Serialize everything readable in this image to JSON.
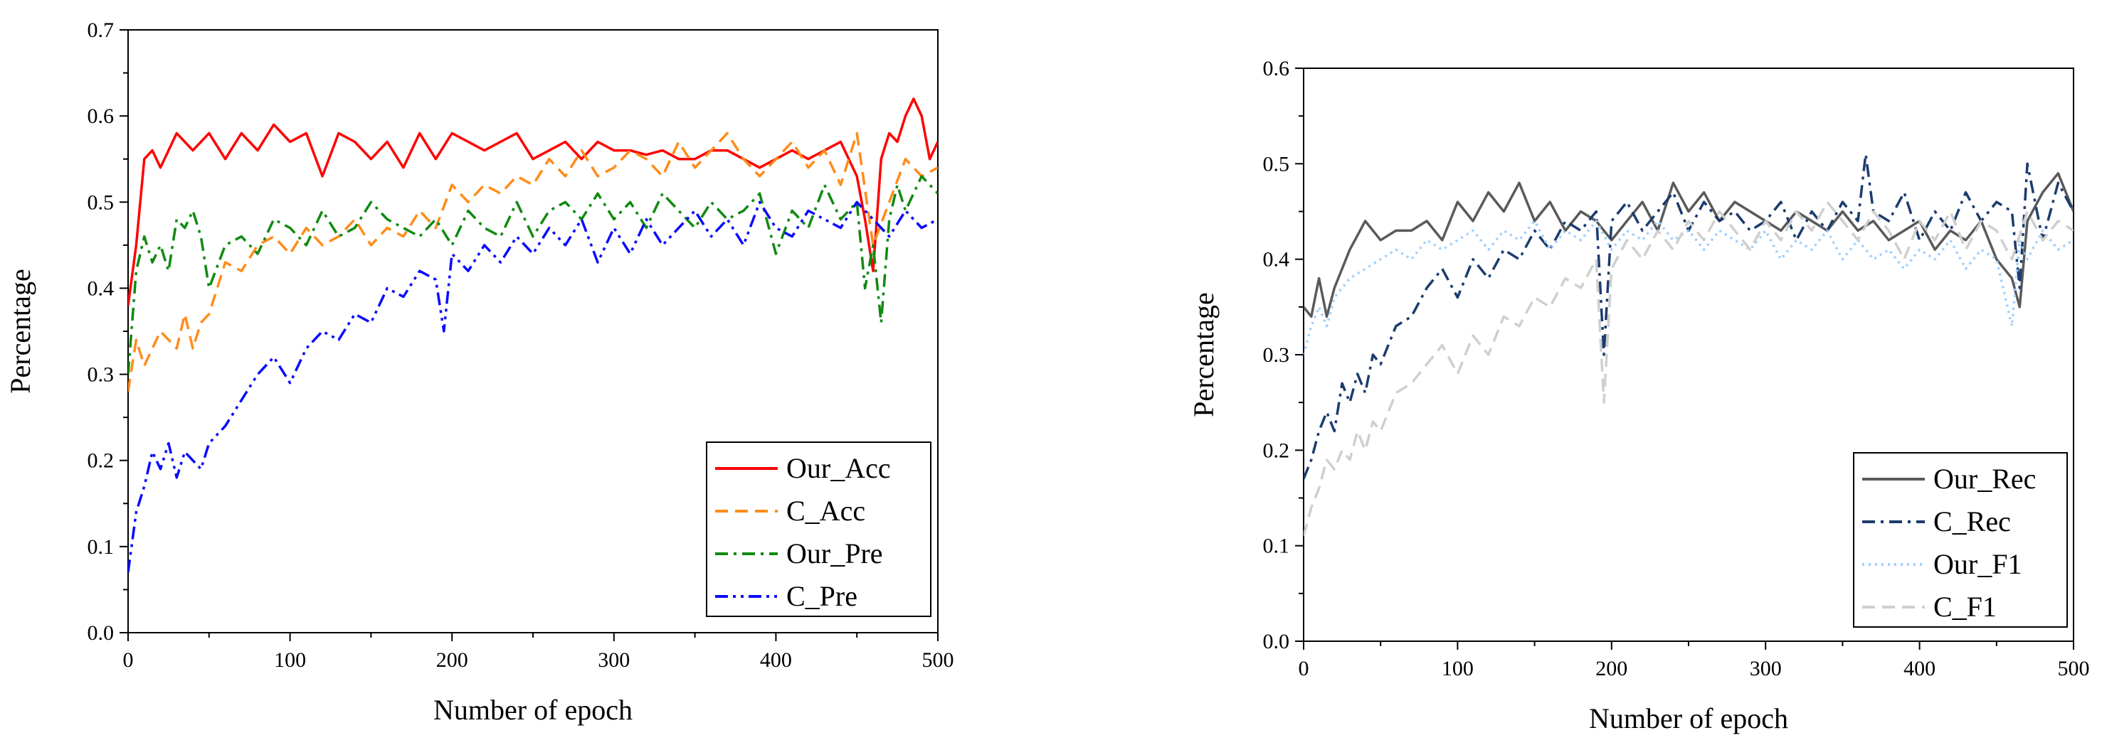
{
  "chart_data": [
    {
      "type": "line",
      "title": "",
      "xlabel": "Number of epoch",
      "ylabel": "Percentage",
      "xlim": [
        0,
        500
      ],
      "ylim": [
        0,
        0.7
      ],
      "xticks": [
        0,
        100,
        200,
        300,
        400,
        500
      ],
      "yticks": [
        0,
        0.1,
        0.2,
        0.3,
        0.4,
        0.5,
        0.6,
        0.7
      ],
      "xtick_labels": [
        "0",
        "100",
        "200",
        "300",
        "400",
        "500"
      ],
      "ytick_labels": [
        "0.0",
        "0.1",
        "0.2",
        "0.3",
        "0.4",
        "0.5",
        "0.6",
        "0.7"
      ],
      "grid": false,
      "legend_position": "bottom-right",
      "series": [
        {
          "name": "Our_Acc",
          "color": "#ff0000",
          "dash": "solid",
          "x": [
            0,
            5,
            10,
            15,
            20,
            30,
            40,
            50,
            60,
            70,
            80,
            90,
            100,
            110,
            120,
            130,
            140,
            150,
            160,
            170,
            180,
            190,
            200,
            210,
            220,
            230,
            240,
            250,
            260,
            270,
            280,
            290,
            300,
            310,
            320,
            330,
            340,
            350,
            360,
            370,
            380,
            390,
            400,
            410,
            420,
            430,
            440,
            450,
            455,
            460,
            465,
            470,
            475,
            480,
            485,
            490,
            495,
            500
          ],
          "y": [
            0.38,
            0.45,
            0.55,
            0.56,
            0.54,
            0.58,
            0.56,
            0.58,
            0.55,
            0.58,
            0.56,
            0.59,
            0.57,
            0.58,
            0.53,
            0.58,
            0.57,
            0.55,
            0.57,
            0.54,
            0.58,
            0.55,
            0.58,
            0.57,
            0.56,
            0.57,
            0.58,
            0.55,
            0.56,
            0.57,
            0.55,
            0.57,
            0.56,
            0.56,
            0.555,
            0.56,
            0.55,
            0.55,
            0.56,
            0.56,
            0.55,
            0.54,
            0.55,
            0.56,
            0.55,
            0.56,
            0.57,
            0.53,
            0.48,
            0.42,
            0.55,
            0.58,
            0.57,
            0.6,
            0.62,
            0.6,
            0.55,
            0.57
          ]
        },
        {
          "name": "C_Acc",
          "color": "#ff8c1a",
          "dash": "dash",
          "x": [
            0,
            5,
            10,
            15,
            20,
            25,
            30,
            35,
            40,
            45,
            50,
            60,
            70,
            80,
            90,
            100,
            110,
            120,
            130,
            140,
            150,
            160,
            170,
            180,
            190,
            200,
            210,
            220,
            230,
            240,
            250,
            260,
            270,
            280,
            290,
            300,
            310,
            320,
            330,
            340,
            350,
            360,
            370,
            380,
            390,
            400,
            410,
            420,
            430,
            440,
            450,
            460,
            470,
            480,
            490,
            500
          ],
          "y": [
            0.28,
            0.34,
            0.31,
            0.33,
            0.35,
            0.34,
            0.33,
            0.37,
            0.33,
            0.36,
            0.37,
            0.43,
            0.42,
            0.45,
            0.46,
            0.44,
            0.47,
            0.45,
            0.46,
            0.48,
            0.45,
            0.47,
            0.46,
            0.49,
            0.47,
            0.52,
            0.5,
            0.52,
            0.51,
            0.53,
            0.52,
            0.55,
            0.53,
            0.56,
            0.53,
            0.54,
            0.56,
            0.55,
            0.53,
            0.57,
            0.54,
            0.56,
            0.58,
            0.55,
            0.53,
            0.55,
            0.57,
            0.54,
            0.56,
            0.52,
            0.58,
            0.45,
            0.5,
            0.55,
            0.53,
            0.54
          ]
        },
        {
          "name": "Our_Pre",
          "color": "#108a10",
          "dash": "dashdot",
          "x": [
            0,
            5,
            10,
            15,
            20,
            25,
            30,
            35,
            40,
            45,
            50,
            60,
            70,
            80,
            90,
            100,
            110,
            120,
            130,
            140,
            150,
            160,
            170,
            180,
            190,
            200,
            210,
            220,
            230,
            240,
            250,
            260,
            270,
            280,
            290,
            300,
            310,
            320,
            330,
            340,
            350,
            360,
            370,
            380,
            390,
            400,
            410,
            420,
            430,
            440,
            450,
            455,
            460,
            465,
            470,
            475,
            480,
            490,
            500
          ],
          "y": [
            0.3,
            0.42,
            0.46,
            0.43,
            0.45,
            0.42,
            0.48,
            0.47,
            0.49,
            0.46,
            0.4,
            0.45,
            0.46,
            0.44,
            0.48,
            0.47,
            0.45,
            0.49,
            0.46,
            0.47,
            0.5,
            0.48,
            0.47,
            0.46,
            0.48,
            0.45,
            0.49,
            0.47,
            0.46,
            0.5,
            0.46,
            0.49,
            0.5,
            0.48,
            0.51,
            0.48,
            0.5,
            0.47,
            0.51,
            0.49,
            0.47,
            0.5,
            0.48,
            0.49,
            0.51,
            0.44,
            0.49,
            0.47,
            0.52,
            0.48,
            0.5,
            0.4,
            0.45,
            0.36,
            0.48,
            0.52,
            0.49,
            0.53,
            0.51
          ]
        },
        {
          "name": "C_Pre",
          "color": "#0a0aff",
          "dash": "dashdotdot",
          "x": [
            0,
            5,
            10,
            15,
            20,
            25,
            30,
            35,
            40,
            45,
            50,
            60,
            70,
            80,
            90,
            100,
            110,
            120,
            130,
            140,
            150,
            160,
            170,
            180,
            190,
            195,
            200,
            210,
            220,
            230,
            240,
            250,
            260,
            270,
            280,
            290,
            300,
            310,
            320,
            330,
            340,
            350,
            360,
            370,
            380,
            390,
            400,
            410,
            420,
            430,
            440,
            450,
            460,
            470,
            480,
            490,
            500
          ],
          "y": [
            0.07,
            0.14,
            0.17,
            0.21,
            0.19,
            0.22,
            0.18,
            0.21,
            0.2,
            0.19,
            0.22,
            0.24,
            0.27,
            0.3,
            0.32,
            0.29,
            0.33,
            0.35,
            0.34,
            0.37,
            0.36,
            0.4,
            0.39,
            0.42,
            0.41,
            0.35,
            0.44,
            0.42,
            0.45,
            0.43,
            0.46,
            0.44,
            0.47,
            0.45,
            0.48,
            0.43,
            0.47,
            0.44,
            0.48,
            0.45,
            0.47,
            0.49,
            0.46,
            0.48,
            0.45,
            0.5,
            0.47,
            0.46,
            0.49,
            0.48,
            0.47,
            0.5,
            0.48,
            0.46,
            0.49,
            0.47,
            0.48
          ]
        }
      ]
    },
    {
      "type": "line",
      "title": "",
      "xlabel": "Number of epoch",
      "ylabel": "Percentage",
      "xlim": [
        0,
        500
      ],
      "ylim": [
        0,
        0.6
      ],
      "xticks": [
        0,
        100,
        200,
        300,
        400,
        500
      ],
      "yticks": [
        0,
        0.1,
        0.2,
        0.3,
        0.4,
        0.5,
        0.6
      ],
      "xtick_labels": [
        "0",
        "100",
        "200",
        "300",
        "400",
        "500"
      ],
      "ytick_labels": [
        "0.0",
        "0.1",
        "0.2",
        "0.3",
        "0.4",
        "0.5",
        "0.6"
      ],
      "grid": false,
      "legend_position": "bottom-right",
      "series": [
        {
          "name": "Our_Rec",
          "color": "#5a5a5a",
          "dash": "solid",
          "x": [
            0,
            5,
            10,
            15,
            20,
            30,
            40,
            50,
            60,
            70,
            80,
            90,
            100,
            110,
            120,
            130,
            140,
            150,
            160,
            170,
            180,
            190,
            200,
            210,
            220,
            230,
            240,
            250,
            260,
            270,
            280,
            290,
            300,
            310,
            320,
            330,
            340,
            350,
            360,
            370,
            380,
            390,
            400,
            410,
            420,
            430,
            440,
            450,
            460,
            465,
            470,
            480,
            490,
            500
          ],
          "y": [
            0.35,
            0.34,
            0.38,
            0.34,
            0.37,
            0.41,
            0.44,
            0.42,
            0.43,
            0.43,
            0.44,
            0.42,
            0.46,
            0.44,
            0.47,
            0.45,
            0.48,
            0.44,
            0.46,
            0.43,
            0.45,
            0.44,
            0.42,
            0.44,
            0.46,
            0.43,
            0.48,
            0.45,
            0.47,
            0.44,
            0.46,
            0.45,
            0.44,
            0.43,
            0.45,
            0.44,
            0.43,
            0.45,
            0.43,
            0.44,
            0.42,
            0.43,
            0.44,
            0.41,
            0.43,
            0.42,
            0.44,
            0.4,
            0.38,
            0.35,
            0.44,
            0.47,
            0.49,
            0.45
          ]
        },
        {
          "name": "C_Rec",
          "color": "#1c3c6e",
          "dash": "dashdot",
          "x": [
            0,
            5,
            10,
            15,
            20,
            25,
            30,
            35,
            40,
            45,
            50,
            60,
            70,
            80,
            90,
            100,
            110,
            120,
            130,
            140,
            150,
            160,
            170,
            180,
            190,
            195,
            200,
            210,
            220,
            230,
            240,
            250,
            260,
            270,
            280,
            290,
            300,
            310,
            320,
            330,
            340,
            350,
            360,
            365,
            370,
            380,
            390,
            400,
            410,
            420,
            430,
            440,
            450,
            460,
            465,
            470,
            480,
            490,
            500
          ],
          "y": [
            0.17,
            0.19,
            0.22,
            0.24,
            0.22,
            0.27,
            0.25,
            0.28,
            0.26,
            0.3,
            0.29,
            0.33,
            0.34,
            0.37,
            0.39,
            0.36,
            0.4,
            0.38,
            0.41,
            0.4,
            0.43,
            0.41,
            0.44,
            0.43,
            0.45,
            0.3,
            0.44,
            0.46,
            0.43,
            0.45,
            0.47,
            0.43,
            0.46,
            0.44,
            0.45,
            0.43,
            0.44,
            0.46,
            0.42,
            0.45,
            0.43,
            0.46,
            0.44,
            0.51,
            0.45,
            0.44,
            0.47,
            0.42,
            0.45,
            0.43,
            0.47,
            0.44,
            0.46,
            0.45,
            0.37,
            0.5,
            0.42,
            0.48,
            0.45
          ]
        },
        {
          "name": "Our_F1",
          "color": "#9fcfff",
          "dash": "dot",
          "x": [
            0,
            5,
            10,
            15,
            20,
            30,
            40,
            50,
            60,
            70,
            80,
            90,
            100,
            110,
            120,
            130,
            140,
            150,
            160,
            170,
            180,
            190,
            200,
            210,
            220,
            230,
            240,
            250,
            260,
            270,
            280,
            290,
            300,
            310,
            320,
            330,
            340,
            350,
            360,
            370,
            380,
            390,
            400,
            410,
            420,
            430,
            440,
            450,
            460,
            465,
            470,
            480,
            490,
            500
          ],
          "y": [
            0.3,
            0.33,
            0.35,
            0.33,
            0.36,
            0.38,
            0.39,
            0.4,
            0.41,
            0.4,
            0.42,
            0.41,
            0.42,
            0.43,
            0.41,
            0.43,
            0.42,
            0.44,
            0.41,
            0.43,
            0.42,
            0.44,
            0.41,
            0.43,
            0.42,
            0.44,
            0.42,
            0.43,
            0.41,
            0.43,
            0.42,
            0.41,
            0.43,
            0.4,
            0.42,
            0.41,
            0.43,
            0.4,
            0.42,
            0.4,
            0.41,
            0.39,
            0.41,
            0.4,
            0.42,
            0.39,
            0.41,
            0.4,
            0.33,
            0.42,
            0.4,
            0.43,
            0.41,
            0.42
          ]
        },
        {
          "name": "C_F1",
          "color": "#cfcfcf",
          "dash": "dash",
          "x": [
            0,
            5,
            10,
            15,
            20,
            25,
            30,
            35,
            40,
            45,
            50,
            60,
            70,
            80,
            90,
            100,
            110,
            120,
            130,
            140,
            150,
            160,
            170,
            180,
            190,
            195,
            200,
            210,
            220,
            230,
            240,
            250,
            260,
            270,
            280,
            290,
            300,
            310,
            320,
            330,
            340,
            350,
            360,
            370,
            380,
            390,
            400,
            410,
            420,
            430,
            440,
            450,
            460,
            470,
            480,
            490,
            500
          ],
          "y": [
            0.11,
            0.14,
            0.16,
            0.19,
            0.18,
            0.2,
            0.19,
            0.22,
            0.2,
            0.23,
            0.22,
            0.26,
            0.27,
            0.29,
            0.31,
            0.28,
            0.32,
            0.3,
            0.34,
            0.33,
            0.36,
            0.35,
            0.38,
            0.37,
            0.4,
            0.25,
            0.39,
            0.42,
            0.4,
            0.43,
            0.41,
            0.44,
            0.42,
            0.45,
            0.43,
            0.41,
            0.44,
            0.42,
            0.45,
            0.43,
            0.46,
            0.44,
            0.42,
            0.45,
            0.43,
            0.4,
            0.44,
            0.42,
            0.45,
            0.41,
            0.44,
            0.43,
            0.4,
            0.45,
            0.42,
            0.44,
            0.43
          ]
        }
      ]
    }
  ]
}
